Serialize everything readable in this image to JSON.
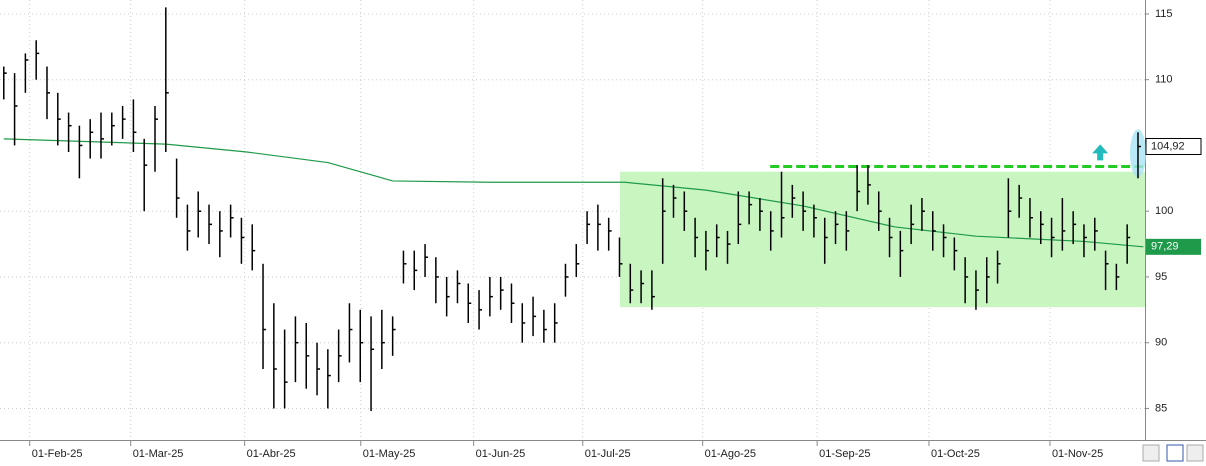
{
  "chart_data": {
    "type": "ohlc",
    "x": [
      0,
      2,
      4,
      6,
      8,
      10,
      12,
      14,
      16,
      18,
      20,
      22,
      24,
      26,
      28,
      30,
      32,
      34,
      36,
      38,
      40,
      42,
      44,
      46,
      48,
      50,
      52,
      54,
      56,
      58,
      60,
      62,
      64,
      66,
      68,
      70,
      72,
      74,
      76,
      78,
      80,
      82,
      84,
      86,
      88,
      90,
      92,
      94,
      96,
      98,
      100,
      102,
      104,
      106,
      108,
      110,
      112,
      114,
      116,
      118,
      120,
      122,
      124,
      126,
      128,
      130,
      132,
      134,
      136,
      138,
      140,
      142,
      144,
      146,
      148,
      150,
      152,
      154,
      156,
      158,
      160,
      162,
      164,
      166,
      168,
      170,
      172,
      174,
      176,
      178,
      180,
      182,
      184,
      186,
      188,
      190,
      192,
      194,
      196,
      198,
      200,
      202,
      204,
      206,
      208,
      210
    ],
    "high": [
      111,
      110.5,
      112,
      113,
      111,
      109,
      107.5,
      106.5,
      107,
      107.5,
      107.5,
      108,
      108.5,
      105.5,
      108,
      115.5,
      104,
      100.5,
      101.5,
      100.5,
      100,
      100.5,
      99.5,
      99,
      96,
      93,
      91,
      92,
      91.5,
      90,
      89.5,
      91,
      93,
      92.5,
      92,
      92.5,
      92,
      97,
      97,
      97.5,
      96.5,
      95,
      95.5,
      94.5,
      94,
      95,
      95,
      94.5,
      93,
      93.5,
      92.5,
      93,
      96,
      97.5,
      100,
      100.5,
      99.5,
      98,
      96,
      95.5,
      95.5,
      102.5,
      102,
      101.5,
      99.5,
      98.5,
      99,
      98.5,
      101.5,
      101.5,
      101,
      100,
      103,
      102,
      101.5,
      100.5,
      99.5,
      100,
      100,
      103.5,
      103.5,
      101.5,
      99.5,
      98.5,
      100.5,
      101,
      100,
      99,
      98,
      96.5,
      95.5,
      96.5,
      97,
      102.5,
      102,
      101,
      100,
      99.5,
      101,
      100,
      99,
      99.5,
      97,
      96,
      99,
      106
    ],
    "low": [
      108.5,
      105,
      109,
      110,
      107,
      105,
      104.5,
      102.5,
      104,
      104,
      105,
      105.5,
      104.5,
      100,
      103,
      104.5,
      99.5,
      97,
      98,
      97.5,
      96.5,
      98,
      96,
      95.5,
      88,
      85,
      85,
      87,
      86.5,
      86,
      85,
      87,
      88.5,
      87,
      84.8,
      88,
      89,
      94.5,
      94,
      95,
      93,
      92,
      93,
      91.5,
      91,
      92,
      92.5,
      91.5,
      90,
      90.5,
      90,
      90,
      93.5,
      95,
      97.5,
      97,
      97,
      95,
      93,
      93,
      92.5,
      96,
      99.5,
      98.5,
      96.5,
      95.5,
      96.5,
      96,
      97.5,
      99,
      98.5,
      97,
      98,
      99.5,
      98.5,
      98,
      96,
      97.5,
      97,
      100,
      100.5,
      98.5,
      96.5,
      95,
      97.5,
      98.5,
      97,
      96.5,
      95.5,
      93,
      92.5,
      93,
      94.5,
      98,
      99.5,
      98,
      97.5,
      96.5,
      97,
      97.5,
      96.5,
      97,
      94,
      94,
      96,
      102.5
    ],
    "close": [
      110.5,
      108,
      111.5,
      112,
      109,
      107,
      106.5,
      105,
      106,
      105.5,
      106.5,
      107,
      106,
      103.5,
      107,
      109,
      101,
      98.5,
      100,
      99,
      98.5,
      99.5,
      98,
      97,
      91,
      88,
      87,
      90,
      89,
      88,
      87.5,
      89,
      91,
      90,
      89.5,
      90,
      91,
      96,
      95.5,
      96.5,
      95,
      93.5,
      94.5,
      93,
      92.5,
      93.5,
      94,
      93,
      91.5,
      92,
      91,
      91.5,
      95,
      96,
      99,
      99,
      98.5,
      96,
      94,
      94.5,
      93.5,
      100,
      101,
      100,
      98,
      97,
      98,
      97.5,
      99,
      100.5,
      100,
      98.5,
      99.5,
      101,
      100,
      99.5,
      98,
      99,
      98.5,
      101.5,
      102,
      100,
      98,
      97,
      99,
      100,
      98.5,
      98,
      97,
      95,
      94,
      95,
      96,
      100,
      101,
      99.5,
      99,
      98,
      98.5,
      99,
      98,
      98.5,
      96,
      95,
      98,
      104.92
    ],
    "last_price": {
      "value": 104.92,
      "label": "104,92"
    },
    "moving_average": {
      "color": "#1e9a4a",
      "x": [
        0,
        30,
        45,
        60,
        72,
        90,
        115,
        130,
        148,
        165,
        180,
        200,
        211
      ],
      "values": [
        105.5,
        105.1,
        104.5,
        103.7,
        102.3,
        102.2,
        102.2,
        101.6,
        100.4,
        98.8,
        98.1,
        97.7,
        97.29
      ],
      "last": {
        "value": 97.29,
        "label": "97,29"
      }
    },
    "zone": {
      "color": "#c8f5c0",
      "x": [
        114.1,
        211.3
      ],
      "y": [
        92.7,
        103
      ]
    },
    "resistance": {
      "color": "#22cc22",
      "x": [
        141.9,
        211.3
      ],
      "y": 103.4
    },
    "breakout_arrow": {
      "color": "#22bbbb",
      "x": 203,
      "y": 104.4
    },
    "highlight": {
      "color": "#a8e4f4",
      "x": 210,
      "y": 104.4
    },
    "xlim": [
      -0.7,
      211.3
    ],
    "ylim": [
      82.6,
      116.06
    ],
    "xticks": [
      {
        "value": 4.8,
        "label": "01-Feb-25"
      },
      {
        "value": 23.5,
        "label": "01-Mar-25"
      },
      {
        "value": 44.6,
        "label": "01-Abr-25"
      },
      {
        "value": 66.1,
        "label": "01-May-25"
      },
      {
        "value": 87,
        "label": "01-Jun-25"
      },
      {
        "value": 107.2,
        "label": "01-Jul-25"
      },
      {
        "value": 129.4,
        "label": "01-Ago-25"
      },
      {
        "value": 150.6,
        "label": "01-Sep-25"
      },
      {
        "value": 171.3,
        "label": "01-Oct-25"
      },
      {
        "value": 193.7,
        "label": "01-Nov-25"
      }
    ],
    "yticks": [
      85,
      90,
      95,
      100,
      110,
      115
    ],
    "grid": true,
    "color": "#000000"
  }
}
